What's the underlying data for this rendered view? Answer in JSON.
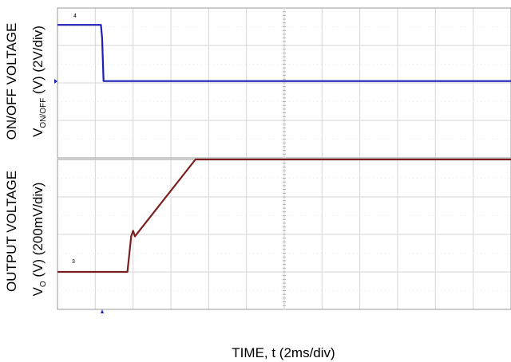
{
  "chart_data": [
    {
      "type": "line",
      "ylabel_line1": "ON/OFF VOLTAGE",
      "ylabel_line2_prefix": "V",
      "ylabel_line2_subscript": "ON/OFF",
      "ylabel_line2_suffix": " (V) (2V/div)",
      "xlabel": "TIME, t (2ms/div)",
      "grid": true,
      "x_units": "div",
      "y_units": "div",
      "xlim": [
        0,
        12
      ],
      "ylim": [
        0,
        4
      ],
      "series": [
        {
          "color": "#1f1fb8",
          "x": [
            0,
            1.15,
            1.18,
            1.22,
            12
          ],
          "y": [
            3.55,
            3.55,
            3.2,
            2.05,
            2.05
          ]
        }
      ]
    },
    {
      "type": "line",
      "ylabel_line1": "OUTPUT VOLTAGE",
      "ylabel_line2_prefix": "V",
      "ylabel_line2_subscript": "O",
      "ylabel_line2_suffix": " (V) (200mV/div)",
      "grid": true,
      "x_units": "div",
      "y_units": "div",
      "xlim": [
        0,
        12
      ],
      "ylim": [
        0,
        4
      ],
      "series": [
        {
          "color": "#7a1f1f",
          "x": [
            0,
            1.8,
            1.85,
            1.95,
            2.0,
            2.05,
            3.65,
            12
          ],
          "y": [
            1.0,
            1.0,
            1.0,
            1.95,
            2.1,
            1.95,
            4.0,
            4.0
          ]
        }
      ]
    }
  ],
  "markers": {
    "top_marker_label": "4",
    "bottom_marker_label": "3"
  }
}
